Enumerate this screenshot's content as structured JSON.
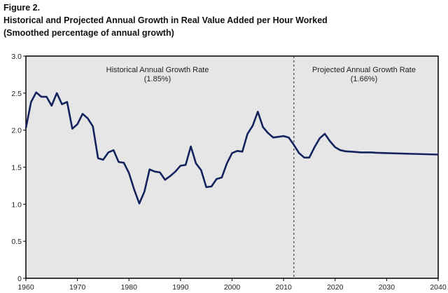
{
  "figure_label": "Figure 2.",
  "chart_data": {
    "type": "line",
    "title": "Historical and Projected Annual Growth in Real Value Added per Hour Worked",
    "subtitle": "(Smoothed percentage of annual growth)",
    "xlabel": "",
    "ylabel": "",
    "xlim": [
      1960,
      2040
    ],
    "ylim": [
      0,
      3.0
    ],
    "x_ticks": [
      "1960",
      "1970",
      "1980",
      "1990",
      "2000",
      "2010",
      "2020",
      "2030",
      "2040"
    ],
    "y_ticks": [
      "0",
      "0.5",
      "1.0",
      "1.5",
      "2.0",
      "2.5",
      "3.0"
    ],
    "grid": false,
    "divider_year": 2012,
    "annotations": [
      {
        "label": "Historical Annual Growth Rate",
        "value": "(1.85%)"
      },
      {
        "label": "Projected Annual Growth Rate",
        "value": "(1.66%)"
      }
    ],
    "colors": {
      "line": "#14235e",
      "plot_bg": "#e6e6e6"
    },
    "series": [
      {
        "x": [
          1960,
          1961,
          1962,
          1963,
          1964,
          1965,
          1966,
          1967,
          1968,
          1969,
          1970,
          1971,
          1972,
          1973,
          1974,
          1975,
          1976,
          1977,
          1978,
          1979,
          1980,
          1981,
          1982,
          1983,
          1984,
          1985,
          1986,
          1987,
          1988,
          1989,
          1990,
          1991,
          1992,
          1993,
          1994,
          1995,
          1996,
          1997,
          1998,
          1999,
          2000,
          2001,
          2002,
          2003,
          2004,
          2005,
          2006,
          2007,
          2008,
          2009,
          2010,
          2011,
          2012,
          2013,
          2014,
          2015,
          2016,
          2017,
          2018,
          2019,
          2020,
          2021,
          2022,
          2023,
          2024,
          2025,
          2026,
          2027,
          2028,
          2030,
          2035,
          2040
        ],
        "values": [
          2.03,
          2.38,
          2.51,
          2.45,
          2.45,
          2.33,
          2.5,
          2.35,
          2.38,
          2.02,
          2.08,
          2.22,
          2.16,
          2.05,
          1.62,
          1.6,
          1.7,
          1.73,
          1.57,
          1.56,
          1.42,
          1.2,
          1.01,
          1.17,
          1.47,
          1.44,
          1.43,
          1.33,
          1.38,
          1.44,
          1.52,
          1.53,
          1.78,
          1.55,
          1.46,
          1.23,
          1.24,
          1.34,
          1.36,
          1.55,
          1.69,
          1.72,
          1.71,
          1.95,
          2.06,
          2.25,
          2.04,
          1.96,
          1.9,
          1.91,
          1.92,
          1.9,
          1.8,
          1.69,
          1.63,
          1.63,
          1.77,
          1.89,
          1.95,
          1.85,
          1.77,
          1.73,
          1.715,
          1.71,
          1.705,
          1.7,
          1.7,
          1.7,
          1.695,
          1.69,
          1.68,
          1.67
        ]
      }
    ]
  }
}
